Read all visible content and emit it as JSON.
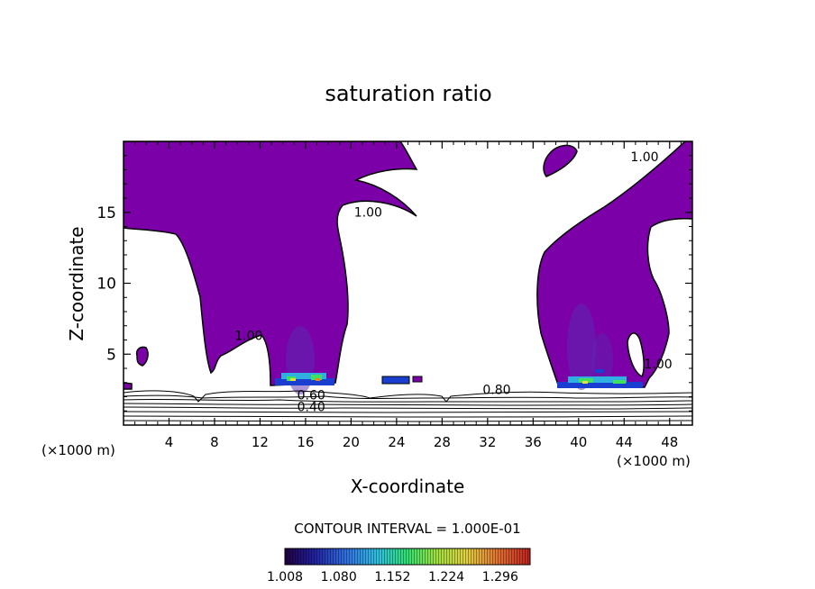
{
  "chart_data": {
    "type": "contour",
    "title": "saturation ratio",
    "xlabel": "X-coordinate",
    "ylabel": "Z-coordinate",
    "x_unit_left": "(×1000 m)",
    "x_unit_right": "(×1000 m)",
    "xlim": [
      0,
      50
    ],
    "ylim": [
      0,
      20
    ],
    "x_ticks": [
      4,
      8,
      12,
      16,
      20,
      24,
      28,
      32,
      36,
      40,
      44,
      48
    ],
    "y_ticks": [
      5,
      10,
      15
    ],
    "fill_color": "#7b00a8",
    "contour_labels": [
      {
        "text": "1.00",
        "x": 21.5,
        "y": 14.7
      },
      {
        "text": "1.00",
        "x": 11.0,
        "y": 6.0
      },
      {
        "text": "1.00",
        "x": 45.8,
        "y": 18.6
      },
      {
        "text": "1.00",
        "x": 47.0,
        "y": 4.0
      },
      {
        "text": "0.80",
        "x": 32.8,
        "y": 2.2
      },
      {
        "text": "0.60",
        "x": 16.5,
        "y": 1.8
      },
      {
        "text": "0.40",
        "x": 16.5,
        "y": 1.0
      }
    ],
    "contour_interval_text": "CONTOUR INTERVAL = 1.000E-01",
    "colorbar": {
      "tick_labels": [
        "1.008",
        "1.080",
        "1.152",
        "1.224",
        "1.296"
      ],
      "min": 1.008,
      "max": 1.336
    }
  }
}
